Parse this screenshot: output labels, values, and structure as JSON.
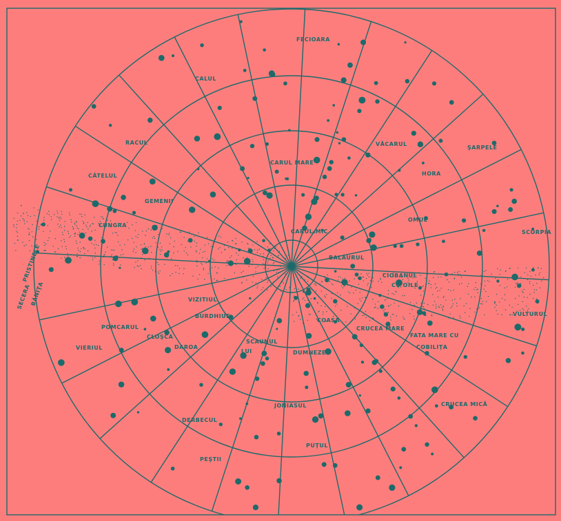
{
  "map": {
    "labels": [
      "FECIOARA",
      "CALUL",
      "RACUL",
      "CÂTELUL",
      "GEMENII",
      "CUNGRA",
      "CARUL MARE",
      "CARUL MIC",
      "VĂCARUL",
      "ŞARPELE",
      "HORA",
      "OMUL",
      "SCORPIA",
      "BALAURUL",
      "CIOBANUL",
      "CU OILE",
      "CRUCEA MARE",
      "VULTURUL",
      "FATA MARE CU",
      "COBILIŢA",
      "CRUCEA MICĂ",
      "PUŢUL",
      "PEŞTII",
      "JONIASUL",
      "DERBECUL",
      "SCAUNUL",
      "LUI",
      "DUMNEZEU",
      "COASA",
      "DAROA",
      "CLOŞCA",
      "VIERIUL",
      "POMCARUL",
      "VIZITIUL",
      "BURDHIUE",
      "SECERA",
      "PRISTINELE",
      "BĂNIŢA"
    ]
  }
}
